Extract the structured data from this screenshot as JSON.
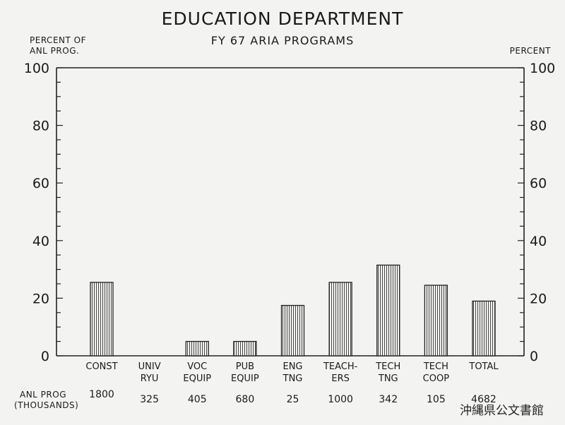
{
  "chart_data": {
    "type": "bar",
    "title": "EDUCATION DEPARTMENT",
    "subtitle": "FY 67 ARIA PROGRAMS",
    "ylabel_left": [
      "PERCENT OF",
      "ANL PROG."
    ],
    "ylabel_right": "PERCENT",
    "ylim": [
      0,
      100
    ],
    "yticks": [
      0,
      20,
      40,
      60,
      80,
      100
    ],
    "grid": false,
    "categories": [
      [
        "CONST"
      ],
      [
        "UNIV",
        "RYU"
      ],
      [
        "VOC",
        "EQUIP"
      ],
      [
        "PUB",
        "EQUIP"
      ],
      [
        "ENG",
        "TNG"
      ],
      [
        "TEACH-",
        "ERS"
      ],
      [
        "TECH",
        "TNG"
      ],
      [
        "TECH",
        "COOP"
      ],
      [
        "TOTAL"
      ]
    ],
    "values": [
      25.5,
      0,
      5,
      5,
      17.5,
      25.5,
      31.5,
      24.5,
      19
    ],
    "anl_prog_label": [
      "ANL PROG",
      "(THOUSANDS)"
    ],
    "anl_prog_values": [
      "1800",
      "325",
      "405",
      "680",
      "25",
      "1000",
      "342",
      "105",
      "4682"
    ]
  },
  "watermark": "沖縄県公文書館"
}
